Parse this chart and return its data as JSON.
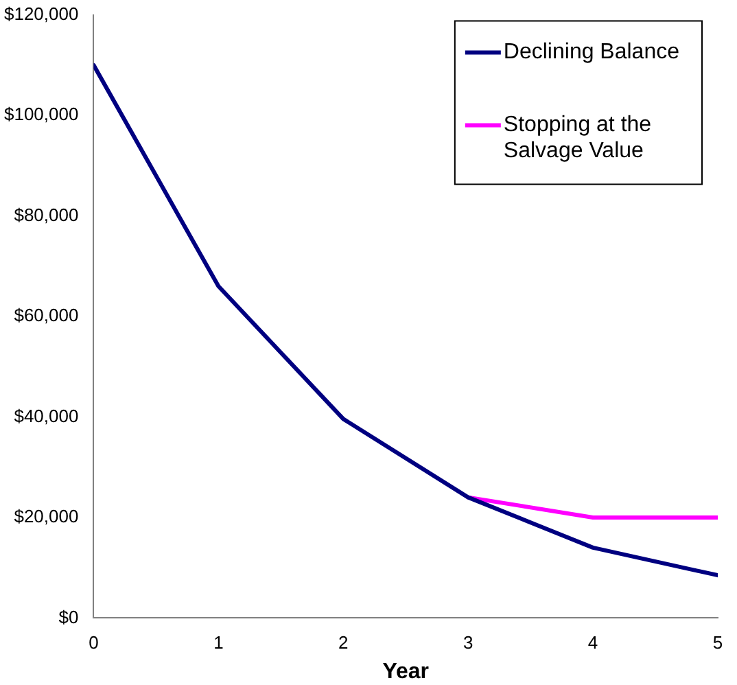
{
  "chart_data": {
    "type": "line",
    "xlabel": "Year",
    "x": [
      0,
      1,
      2,
      3,
      4,
      5
    ],
    "series": [
      {
        "name": "Declining Balance",
        "color": "#000080",
        "values": [
          110000,
          66000,
          39600,
          24000,
          14000,
          8500
        ]
      },
      {
        "name": "Stopping at the Salvage Value",
        "color": "#ff00ff",
        "x": [
          3,
          4,
          5
        ],
        "values": [
          24000,
          20000,
          20000
        ]
      }
    ],
    "xlim": [
      0,
      5
    ],
    "xticks": [
      0,
      1,
      2,
      3,
      4,
      5
    ],
    "ylim": [
      0,
      120000
    ],
    "yticks": [
      {
        "value": 0,
        "label": "$0"
      },
      {
        "value": 20000,
        "label": "$20,000"
      },
      {
        "value": 40000,
        "label": "$40,000"
      },
      {
        "value": 60000,
        "label": "$60,000"
      },
      {
        "value": 80000,
        "label": "$80,000"
      },
      {
        "value": 100000,
        "label": "$100,000"
      },
      {
        "value": 120000,
        "label": "$120,000"
      }
    ],
    "grid": false,
    "legend": "top right",
    "marker": "none",
    "line_style": "solid"
  }
}
